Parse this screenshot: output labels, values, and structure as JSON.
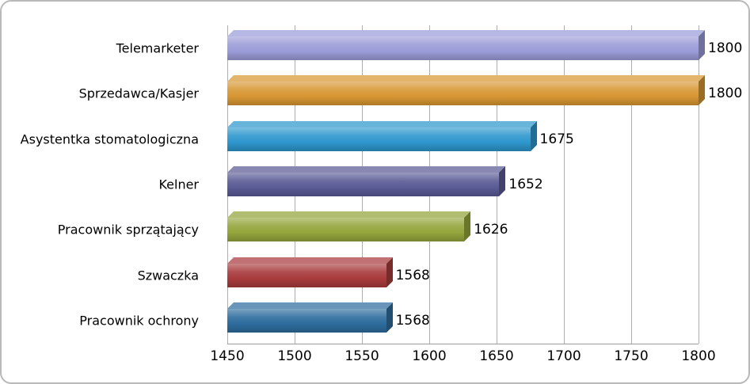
{
  "chart_data": {
    "type": "bar",
    "orientation": "horizontal",
    "categories": [
      "Telemarketer",
      "Sprzedawca/Kasjer",
      "Asystentka stomatologiczna",
      "Kelner",
      "Pracownik sprzątający",
      "Szwaczka",
      "Pracownik ochrony"
    ],
    "values": [
      1800,
      1800,
      1675,
      1652,
      1626,
      1568,
      1568
    ],
    "value_labels": [
      "1800",
      "1800",
      "1675",
      "1652",
      "1626",
      "1568",
      "1568"
    ],
    "bar_colors": [
      "#9c9cd9",
      "#d89733",
      "#2e97ce",
      "#5b5b96",
      "#94a63c",
      "#a93b3d",
      "#2e6d9e"
    ],
    "x_ticks": [
      "1450",
      "1500",
      "1550",
      "1600",
      "1650",
      "1700",
      "1750",
      "1800"
    ],
    "xlim": [
      1450,
      1800
    ],
    "grid": true,
    "legend": false,
    "title": "",
    "xlabel": "",
    "ylabel": ""
  }
}
